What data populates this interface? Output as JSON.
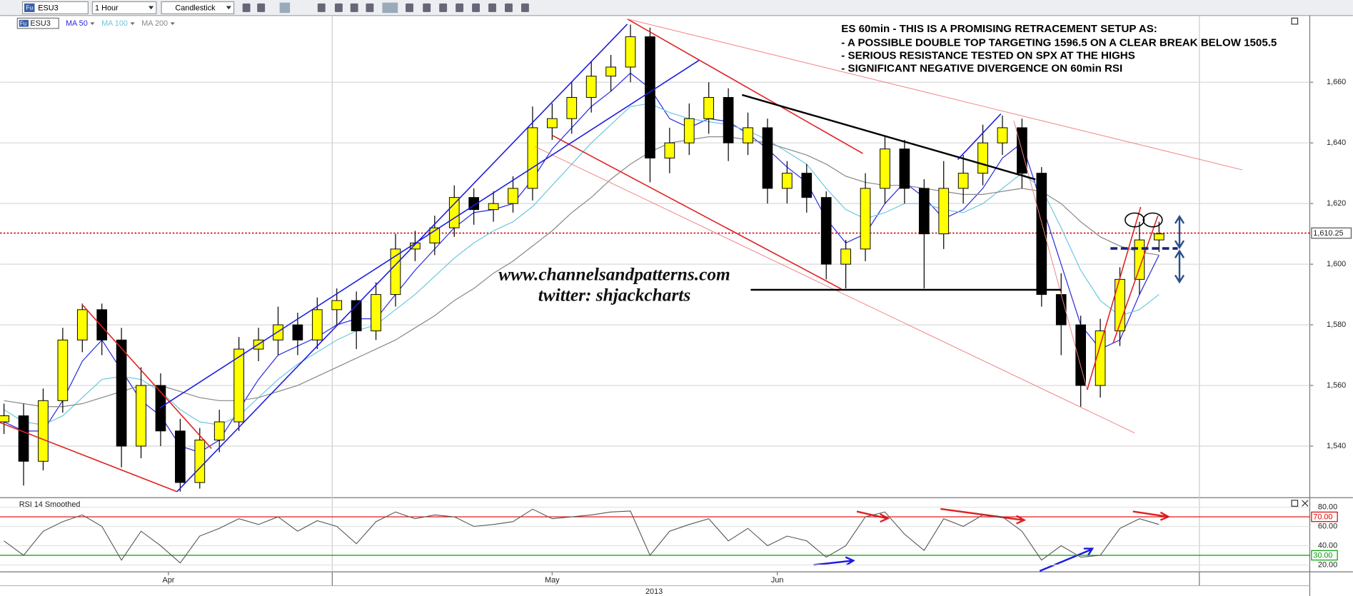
{
  "toolbar": {
    "symbol_badge": "Fu",
    "symbol": "ESU3",
    "interval": "1 Hour",
    "style": "Candlestick"
  },
  "chart_data": [
    {
      "type": "candlestick",
      "legend_badge": "Fu",
      "legend_symbol": "ESU3",
      "annotation": [
        "ES 60min - THIS IS A PROMISING RETRACEMENT SETUP AS:",
        "- A POSSIBLE DOUBLE TOP TARGETING 1596.5 ON A CLEAR BREAK BELOW 1505.5",
        "- SERIOUS RESISTANCE TESTED ON SPX AT THE HIGHS",
        "- SIGNIFICANT NEGATIVE DIVERGENCE ON 60min RSI"
      ],
      "watermark": [
        "www.channelsandpatterns.com",
        "twitter: shjackcharts"
      ],
      "open": [
        1548,
        1550,
        1535,
        1555,
        1575,
        1585,
        1575,
        1540,
        1560,
        1545,
        1528,
        1542,
        1548,
        1572,
        1575,
        1580,
        1575,
        1585,
        1588,
        1578,
        1590,
        1605,
        1607,
        1612,
        1622,
        1618,
        1620,
        1625,
        1645,
        1648,
        1655,
        1662,
        1665,
        1675,
        1635,
        1640,
        1648,
        1655,
        1640,
        1645,
        1625,
        1630,
        1622,
        1600,
        1605,
        1625,
        1638,
        1625,
        1610,
        1625,
        1630,
        1640,
        1645,
        1630,
        1590,
        1580,
        1560,
        1578,
        1595,
        1608
      ],
      "high": [
        1554,
        1554,
        1559,
        1579,
        1587,
        1587,
        1579,
        1566,
        1564,
        1549,
        1546,
        1552,
        1576,
        1579,
        1586,
        1584,
        1589,
        1592,
        1591,
        1594,
        1610,
        1611,
        1616,
        1626,
        1625,
        1624,
        1629,
        1652,
        1653,
        1660,
        1667,
        1669,
        1679,
        1678,
        1645,
        1653,
        1660,
        1658,
        1650,
        1648,
        1634,
        1633,
        1624,
        1608,
        1630,
        1642,
        1641,
        1628,
        1634,
        1636,
        1646,
        1649,
        1648,
        1632,
        1597,
        1583,
        1582,
        1599,
        1614,
        1614
      ],
      "low": [
        1544,
        1527,
        1532,
        1551,
        1571,
        1570,
        1533,
        1536,
        1540,
        1525,
        1526,
        1538,
        1545,
        1568,
        1570,
        1570,
        1572,
        1580,
        1572,
        1575,
        1586,
        1601,
        1603,
        1609,
        1613,
        1614,
        1617,
        1621,
        1641,
        1643,
        1650,
        1657,
        1660,
        1627,
        1630,
        1636,
        1643,
        1634,
        1636,
        1620,
        1620,
        1617,
        1595,
        1592,
        1601,
        1620,
        1620,
        1592,
        1605,
        1620,
        1626,
        1636,
        1625,
        1586,
        1570,
        1553,
        1556,
        1573,
        1590,
        1604
      ],
      "close": [
        1550,
        1535,
        1555,
        1575,
        1585,
        1575,
        1540,
        1560,
        1545,
        1528,
        1542,
        1548,
        1572,
        1575,
        1580,
        1575,
        1585,
        1588,
        1578,
        1590,
        1605,
        1607,
        1612,
        1622,
        1618,
        1620,
        1625,
        1645,
        1648,
        1655,
        1662,
        1665,
        1675,
        1635,
        1640,
        1648,
        1655,
        1640,
        1645,
        1625,
        1630,
        1622,
        1600,
        1605,
        1625,
        1638,
        1625,
        1610,
        1625,
        1630,
        1640,
        1645,
        1630,
        1590,
        1580,
        1560,
        1578,
        1595,
        1608,
        1610
      ],
      "color_up": "#ffff00",
      "color_down": "#000000",
      "series": [
        {
          "name": "MA 50",
          "color": "#2a2ae0",
          "values": [
            1548,
            1545,
            1545,
            1555,
            1568,
            1575,
            1565,
            1555,
            1550,
            1540,
            1538,
            1542,
            1552,
            1562,
            1570,
            1573,
            1576,
            1580,
            1582,
            1582,
            1590,
            1598,
            1605,
            1612,
            1617,
            1618,
            1620,
            1628,
            1638,
            1645,
            1652,
            1657,
            1663,
            1658,
            1648,
            1645,
            1648,
            1647,
            1643,
            1638,
            1632,
            1627,
            1615,
            1607,
            1610,
            1620,
            1627,
            1622,
            1615,
            1618,
            1625,
            1635,
            1640,
            1620,
            1600,
            1580,
            1572,
            1575,
            1590,
            1603
          ]
        },
        {
          "name": "MA 100",
          "color": "#6cc8dc",
          "values": [
            1552,
            1548,
            1547,
            1550,
            1556,
            1562,
            1563,
            1562,
            1558,
            1552,
            1548,
            1547,
            1550,
            1556,
            1562,
            1567,
            1571,
            1575,
            1578,
            1580,
            1585,
            1590,
            1596,
            1602,
            1607,
            1611,
            1614,
            1619,
            1626,
            1633,
            1640,
            1646,
            1652,
            1653,
            1650,
            1648,
            1647,
            1646,
            1644,
            1641,
            1637,
            1633,
            1625,
            1618,
            1615,
            1617,
            1620,
            1620,
            1618,
            1617,
            1620,
            1625,
            1630,
            1625,
            1612,
            1598,
            1588,
            1583,
            1585,
            1590
          ]
        },
        {
          "name": "MA 200",
          "color": "#888888",
          "values": [
            1555,
            1554,
            1553,
            1553,
            1554,
            1556,
            1558,
            1560,
            1560,
            1558,
            1556,
            1555,
            1555,
            1556,
            1558,
            1560,
            1563,
            1566,
            1569,
            1572,
            1575,
            1579,
            1583,
            1588,
            1592,
            1597,
            1601,
            1606,
            1611,
            1617,
            1622,
            1628,
            1633,
            1637,
            1640,
            1641,
            1642,
            1642,
            1641,
            1640,
            1638,
            1636,
            1633,
            1629,
            1627,
            1626,
            1626,
            1625,
            1624,
            1623,
            1623,
            1624,
            1625,
            1624,
            1620,
            1614,
            1609,
            1606,
            1604,
            1603
          ]
        }
      ],
      "ylim": [
        1523,
        1682
      ],
      "yticks": [
        {
          "value": 1540,
          "label": "1,540"
        },
        {
          "value": 1560,
          "label": "1,560"
        },
        {
          "value": 1580,
          "label": "1,580"
        },
        {
          "value": 1600,
          "label": "1,600"
        },
        {
          "value": 1620,
          "label": "1,620"
        },
        {
          "value": 1640,
          "label": "1,640"
        },
        {
          "value": 1660,
          "label": "1,660"
        }
      ],
      "xlim": [
        -0.2,
        66.7
      ],
      "xticks": [
        {
          "value": 8.4,
          "label": "Apr"
        },
        {
          "value": 28,
          "label": "May"
        },
        {
          "value": 39.5,
          "label": "Jun"
        }
      ],
      "year": "2013",
      "last_price": {
        "value": 1610.25,
        "label": "1,610.25"
      },
      "grid": true
    },
    {
      "type": "line",
      "title": "RSI 14 Smoothed",
      "color": "#555555",
      "values": [
        45,
        30,
        55,
        65,
        72,
        60,
        25,
        55,
        40,
        22,
        50,
        58,
        68,
        62,
        70,
        55,
        66,
        60,
        42,
        65,
        75,
        68,
        72,
        70,
        60,
        62,
        65,
        78,
        68,
        70,
        72,
        75,
        76,
        30,
        55,
        62,
        68,
        45,
        58,
        40,
        50,
        45,
        28,
        40,
        70,
        75,
        52,
        35,
        68,
        60,
        72,
        70,
        55,
        25,
        40,
        28,
        30,
        58,
        68,
        62
      ],
      "ylim": [
        12.8,
        89
      ],
      "yticks": [
        {
          "value": 20,
          "label": "20.00"
        },
        {
          "value": 40,
          "label": "40.00"
        },
        {
          "value": 60,
          "label": "60.00"
        },
        {
          "value": 80,
          "label": "80.00"
        }
      ],
      "levels": [
        {
          "value": 70,
          "label": "70.00",
          "color": "#e00000"
        },
        {
          "value": 30,
          "label": "30.00",
          "color": "#00a000"
        }
      ]
    }
  ]
}
